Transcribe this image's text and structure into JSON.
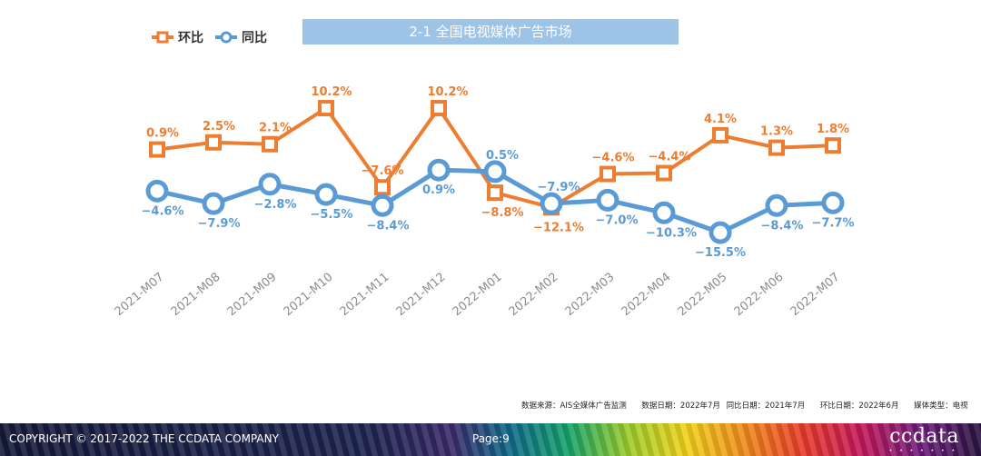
{
  "legend": {
    "qoq_label": "环比",
    "yoy_label": "同比"
  },
  "title_banner": "2-1 全国电视媒体广告市场",
  "chart_data": {
    "type": "line",
    "title": "2-1 全国电视媒体广告市场",
    "categories": [
      "2021-M07",
      "2021-M08",
      "2021-M09",
      "2021-M10",
      "2021-M11",
      "2021-M12",
      "2022-M01",
      "2022-M02",
      "2022-M03",
      "2022-M04",
      "2022-M05",
      "2022-M06",
      "2022-M07"
    ],
    "series": [
      {
        "name": "环比",
        "color": "#ed7d31",
        "marker": "square",
        "values": [
          0.9,
          2.5,
          2.1,
          10.2,
          -7.6,
          10.2,
          -8.8,
          -12.1,
          -4.6,
          -4.4,
          4.1,
          1.3,
          1.8
        ],
        "labels": [
          "0.9%",
          "2.5%",
          "2.1%",
          "10.2%",
          "-7.6%",
          "10.2%",
          "-8.8%",
          "-12.1%",
          "-4.6%",
          "-4.4%",
          "4.1%",
          "1.3%",
          "1.8%"
        ]
      },
      {
        "name": "同比",
        "color": "#5b9bd5",
        "marker": "circle",
        "values": [
          -4.6,
          -7.9,
          -2.8,
          -5.5,
          -8.4,
          0.9,
          0.5,
          -7.9,
          -7.0,
          -10.3,
          -15.5,
          -8.4,
          -7.7
        ],
        "labels": [
          "-4.6%",
          "-7.9%",
          "-2.8%",
          "-5.5%",
          "-8.4%",
          "0.9%",
          "0.5%",
          "-7.9%",
          "-7.0%",
          "-10.3%",
          "-15.5%",
          "-8.4%",
          "-7.7%"
        ]
      }
    ],
    "legend_position": "top-left",
    "grid": false
  },
  "source_note": {
    "source": "数据来源：AIS全媒体广告监测",
    "data_date": "数据日期：2022年7月",
    "yoy_date": "同比日期：2021年7月",
    "qoq_date": "环比日期：2022年6月",
    "media_type": "媒体类型：电视"
  },
  "footer": {
    "copyright": "COPYRIGHT © 2017-2022 THE CCDATA COMPANY",
    "page": "Page:9",
    "brand": "ccdata",
    "brand_dots": "• • • • • • •"
  }
}
